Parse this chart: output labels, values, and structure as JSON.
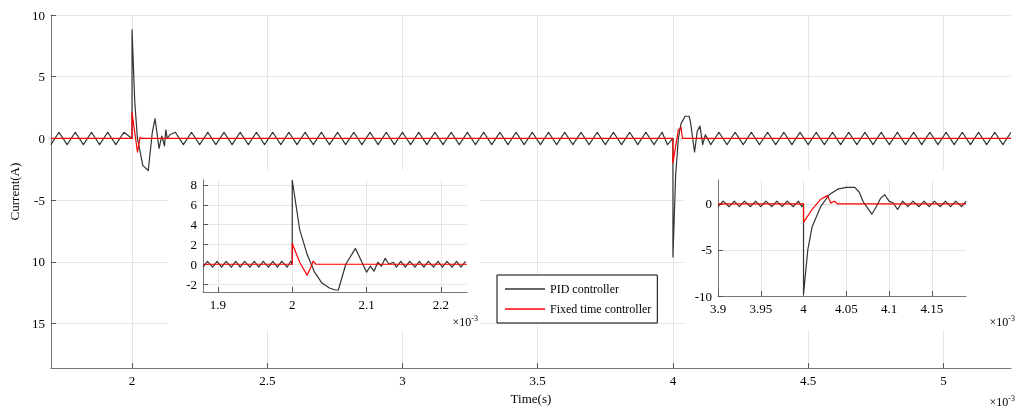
{
  "chart_data": [
    {
      "type": "line",
      "xlabel": "Time(s)",
      "ylabel": "Current(A)",
      "annotations": [
        "×10$^{-3}$"
      ],
      "xlim": [
        1.7,
        5.25
      ],
      "xticks": [
        2,
        2.5,
        3,
        3.5,
        4,
        4.5,
        5
      ],
      "ylim": [
        -18.6,
        10
      ],
      "yticks": [
        10,
        5,
        0,
        -5,
        {
          "value": -10,
          "label": "10"
        },
        {
          "value": -15,
          "label": "15"
        }
      ],
      "grid": true,
      "legend": "bottom",
      "marker": "none",
      "line_style": "solid",
      "series": [
        {
          "name": "PID controller",
          "color": "#333333",
          "x": [
            1.7,
            1.73,
            1.76,
            1.79,
            1.82,
            1.85,
            1.88,
            1.91,
            1.94,
            1.97,
            2.0,
            2.0,
            2.01,
            2.02,
            2.04,
            2.06,
            2.075,
            2.085,
            2.1,
            2.11,
            2.12,
            2.125,
            2.13,
            2.14,
            2.16,
            2.19,
            2.22,
            2.25,
            2.28,
            2.31,
            2.34,
            2.37,
            2.4,
            2.43,
            2.46,
            2.49,
            2.52,
            2.55,
            2.58,
            2.61,
            2.64,
            2.67,
            2.7,
            2.73,
            2.76,
            2.79,
            2.82,
            2.85,
            2.88,
            2.91,
            2.94,
            2.97,
            3.0,
            3.03,
            3.06,
            3.09,
            3.12,
            3.15,
            3.18,
            3.21,
            3.24,
            3.27,
            3.3,
            3.33,
            3.36,
            3.39,
            3.42,
            3.45,
            3.48,
            3.51,
            3.54,
            3.57,
            3.6,
            3.63,
            3.66,
            3.69,
            3.72,
            3.75,
            3.78,
            3.81,
            3.84,
            3.87,
            3.9,
            3.93,
            3.96,
            3.98,
            4.0,
            4.0,
            4.01,
            4.02,
            4.03,
            4.045,
            4.06,
            4.065,
            4.08,
            4.09,
            4.1,
            4.11,
            4.12,
            4.14,
            4.17,
            4.2,
            4.23,
            4.26,
            4.29,
            4.32,
            4.35,
            4.38,
            4.41,
            4.44,
            4.47,
            4.5,
            4.53,
            4.56,
            4.59,
            4.62,
            4.65,
            4.68,
            4.71,
            4.74,
            4.77,
            4.8,
            4.83,
            4.86,
            4.89,
            4.92,
            4.95,
            4.98,
            5.01,
            5.04,
            5.07,
            5.1,
            5.13,
            5.16,
            5.19,
            5.22,
            5.25
          ],
          "values": [
            -0.5,
            0.5,
            -0.5,
            0.5,
            -0.5,
            0.5,
            -0.5,
            0.5,
            -0.5,
            0.5,
            0,
            8.8,
            3,
            0,
            -2.2,
            -2.6,
            0.5,
            1.6,
            -0.8,
            0.2,
            -0.6,
            0.7,
            0,
            0.3,
            0.5,
            -0.5,
            0.5,
            -0.5,
            0.5,
            -0.5,
            0.5,
            -0.5,
            0.5,
            -0.5,
            0.5,
            -0.5,
            0.5,
            -0.5,
            0.5,
            -0.5,
            0.5,
            -0.5,
            0.5,
            -0.5,
            0.5,
            -0.5,
            0.5,
            -0.5,
            0.5,
            -0.5,
            0.5,
            -0.5,
            0.5,
            -0.5,
            0.5,
            -0.5,
            0.5,
            -0.5,
            0.5,
            -0.5,
            0.5,
            -0.5,
            0.5,
            -0.5,
            0.5,
            -0.5,
            0.5,
            -0.5,
            0.5,
            -0.5,
            0.5,
            -0.5,
            0.5,
            -0.5,
            0.5,
            -0.5,
            0.5,
            -0.5,
            0.5,
            -0.5,
            0.5,
            -0.5,
            0.5,
            -0.5,
            0.5,
            -0.5,
            0,
            -9.6,
            -3,
            0,
            1.2,
            1.8,
            1.8,
            1.3,
            -1.1,
            0.6,
            1.0,
            -0.5,
            0.3,
            -0.5,
            0.5,
            -0.5,
            0.5,
            -0.5,
            0.5,
            -0.5,
            0.5,
            -0.5,
            0.5,
            -0.5,
            0.5,
            -0.5,
            0.5,
            -0.5,
            0.5,
            -0.5,
            0.5,
            -0.5,
            0.5,
            -0.5,
            0.5,
            -0.5,
            0.5,
            -0.5,
            0.5,
            -0.5,
            0.5,
            -0.5,
            0.5,
            -0.5,
            0.5,
            -0.5,
            0.5,
            -0.5,
            0.5,
            -0.5,
            0.5
          ]
        },
        {
          "name": "Fixed time controller",
          "color": "#ff0000",
          "x": [
            1.7,
            2.0,
            2.0,
            2.02,
            2.03,
            2.035,
            4.0,
            4.0,
            4.02,
            4.03,
            4.035,
            5.25
          ],
          "values": [
            0,
            0,
            2.1,
            -1.1,
            0.1,
            0,
            0,
            -2,
            0.7,
            0.9,
            0,
            0
          ]
        }
      ]
    },
    {
      "type": "line",
      "annotations": [
        "×10$^{-3}$"
      ],
      "xlim": [
        1.88,
        2.235
      ],
      "xticks": [
        1.9,
        2,
        2.1,
        2.2
      ],
      "ylim": [
        -2.8,
        8.5
      ],
      "yticks": [
        -2,
        0,
        2,
        4,
        6,
        8
      ],
      "grid": true,
      "marker": "none",
      "line_style": "solid",
      "series": [
        {
          "color": "#333333",
          "x": [
            1.88,
            1.886,
            1.893,
            1.899,
            1.905,
            1.911,
            1.918,
            1.924,
            1.93,
            1.936,
            1.943,
            1.949,
            1.955,
            1.961,
            1.968,
            1.974,
            1.98,
            1.986,
            1.993,
            1.998,
            2.0,
            2.0,
            2.01,
            2.02,
            2.03,
            2.04,
            2.05,
            2.058,
            2.062,
            2.072,
            2.085,
            2.1,
            2.105,
            2.11,
            2.115,
            2.12,
            2.125,
            2.13,
            2.136,
            2.14,
            2.146,
            2.152,
            2.158,
            2.165,
            2.171,
            2.177,
            2.183,
            2.19,
            2.196,
            2.202,
            2.208,
            2.215,
            2.221,
            2.227,
            2.233
          ],
          "values": [
            -0.3,
            0.3,
            -0.3,
            0.3,
            -0.3,
            0.3,
            -0.3,
            0.3,
            -0.3,
            0.3,
            -0.3,
            0.3,
            -0.3,
            0.3,
            -0.3,
            0.3,
            -0.3,
            0.3,
            -0.3,
            0.3,
            0,
            8.5,
            3.5,
            1.0,
            -0.8,
            -1.9,
            -2.4,
            -2.6,
            -2.6,
            0,
            1.6,
            -0.8,
            -0.2,
            -0.7,
            0.2,
            -0.2,
            0.6,
            0,
            0.2,
            -0.3,
            0.3,
            -0.3,
            0.3,
            -0.3,
            0.3,
            -0.3,
            0.3,
            -0.3,
            0.3,
            -0.3,
            0.3,
            -0.3,
            0.3,
            -0.3,
            0.3
          ]
        },
        {
          "color": "#ff0000",
          "x": [
            1.88,
            2.0,
            2.0,
            2.01,
            2.02,
            2.025,
            2.028,
            2.032,
            2.235
          ],
          "values": [
            0,
            0,
            2.1,
            0.2,
            -1.1,
            -0.3,
            0.3,
            0,
            0
          ]
        }
      ]
    },
    {
      "type": "line",
      "annotations": [
        "×10$^{-3}$"
      ],
      "xlim": [
        3.9,
        4.19
      ],
      "xticks": [
        3.9,
        3.95,
        4,
        4.05,
        4.1,
        4.15
      ],
      "ylim": [
        -10,
        2.6
      ],
      "yticks": [
        -10,
        -5,
        0
      ],
      "grid": true,
      "marker": "none",
      "line_style": "solid",
      "series": [
        {
          "color": "#333333",
          "x": [
            3.9,
            3.906,
            3.913,
            3.919,
            3.925,
            3.931,
            3.938,
            3.944,
            3.95,
            3.956,
            3.963,
            3.969,
            3.975,
            3.981,
            3.988,
            3.994,
            3.998,
            4.0,
            4.0,
            4.005,
            4.01,
            4.02,
            4.03,
            4.04,
            4.05,
            4.06,
            4.065,
            4.07,
            4.08,
            4.085,
            4.09,
            4.095,
            4.1,
            4.105,
            4.11,
            4.116,
            4.122,
            4.128,
            4.135,
            4.141,
            4.147,
            4.153,
            4.16,
            4.166,
            4.172,
            4.178,
            4.185,
            4.19
          ],
          "values": [
            -0.3,
            0.3,
            -0.3,
            0.3,
            -0.3,
            0.3,
            -0.3,
            0.3,
            -0.3,
            0.3,
            -0.3,
            0.3,
            -0.3,
            0.3,
            -0.3,
            0.3,
            -0.3,
            0,
            -9.8,
            -5,
            -2.5,
            -0.3,
            1.0,
            1.6,
            1.8,
            1.8,
            1.3,
            0.2,
            -1.1,
            -0.3,
            0.6,
            1.0,
            0.3,
            0.1,
            -0.6,
            0.3,
            -0.3,
            0.3,
            -0.3,
            0.3,
            -0.3,
            0.3,
            -0.3,
            0.3,
            -0.3,
            0.3,
            -0.3,
            0.3
          ]
        },
        {
          "color": "#ff0000",
          "x": [
            3.9,
            4.0,
            4.0,
            4.01,
            4.02,
            4.028,
            4.032,
            4.036,
            4.04,
            4.19
          ],
          "values": [
            0,
            0,
            -2,
            -0.6,
            0.5,
            0.9,
            0.1,
            0.3,
            0,
            0
          ]
        }
      ]
    }
  ]
}
